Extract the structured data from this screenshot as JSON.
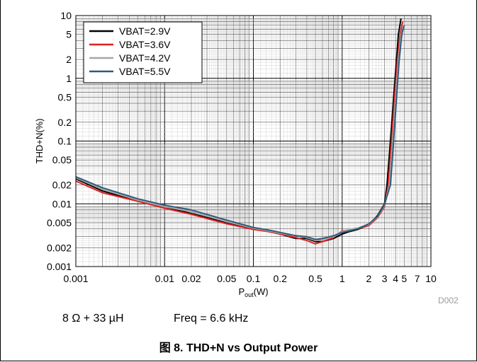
{
  "figure": {
    "caption": "图 8. THD+N vs Output Power",
    "code": "D002",
    "cond_left": "8 Ω + 33 µH",
    "cond_right": "Freq = 6.6 kHz"
  },
  "chart_data": {
    "type": "line",
    "xscale": "log",
    "yscale": "log",
    "xlim": [
      0.001,
      10
    ],
    "ylim": [
      0.001,
      10
    ],
    "ylabel": "THD+N(%)",
    "xlabel_main": "P",
    "xlabel_sub": "out",
    "xlabel_unit": "(W)",
    "grid": true,
    "legend_position": "top-left",
    "x_ticks": [
      {
        "v": 0.001,
        "t": "0.001"
      },
      {
        "v": 0.01,
        "t": "0.01"
      },
      {
        "v": 0.02,
        "t": "0.02"
      },
      {
        "v": 0.05,
        "t": "0.05"
      },
      {
        "v": 0.1,
        "t": "0.1"
      },
      {
        "v": 0.2,
        "t": "0.2"
      },
      {
        "v": 0.5,
        "t": "0.5"
      },
      {
        "v": 1,
        "t": "1"
      },
      {
        "v": 2,
        "t": "2"
      },
      {
        "v": 3,
        "t": "3"
      },
      {
        "v": 4,
        "t": "4"
      },
      {
        "v": 5,
        "t": "5"
      },
      {
        "v": 7,
        "t": "7"
      },
      {
        "v": 10,
        "t": "10"
      }
    ],
    "y_ticks": [
      {
        "v": 0.001,
        "t": "0.001"
      },
      {
        "v": 0.002,
        "t": "0.002"
      },
      {
        "v": 0.005,
        "t": "0.005"
      },
      {
        "v": 0.01,
        "t": "0.01"
      },
      {
        "v": 0.02,
        "t": "0.02"
      },
      {
        "v": 0.05,
        "t": "0.05"
      },
      {
        "v": 0.1,
        "t": "0.1"
      },
      {
        "v": 0.2,
        "t": "0.2"
      },
      {
        "v": 0.5,
        "t": "0.5"
      },
      {
        "v": 1,
        "t": "1"
      },
      {
        "v": 2,
        "t": "2"
      },
      {
        "v": 5,
        "t": "5"
      },
      {
        "v": 10,
        "t": "10"
      }
    ],
    "series": [
      {
        "name": "VBAT=2.9V",
        "color": "#000000",
        "points": [
          [
            0.001,
            0.025
          ],
          [
            0.002,
            0.016
          ],
          [
            0.005,
            0.011
          ],
          [
            0.01,
            0.009
          ],
          [
            0.02,
            0.007
          ],
          [
            0.05,
            0.005
          ],
          [
            0.1,
            0.004
          ],
          [
            0.15,
            0.0036
          ],
          [
            0.2,
            0.0033
          ],
          [
            0.3,
            0.0028
          ],
          [
            0.4,
            0.0028
          ],
          [
            0.5,
            0.0025
          ],
          [
            0.6,
            0.0025
          ],
          [
            0.8,
            0.0028
          ],
          [
            1,
            0.0033
          ],
          [
            1.2,
            0.0036
          ],
          [
            1.5,
            0.0039
          ],
          [
            2,
            0.0046
          ],
          [
            2.5,
            0.0065
          ],
          [
            3,
            0.01
          ],
          [
            3.2,
            0.02
          ],
          [
            3.5,
            0.1
          ],
          [
            3.8,
            0.5
          ],
          [
            4.1,
            2
          ],
          [
            4.3,
            5
          ],
          [
            4.6,
            9
          ]
        ]
      },
      {
        "name": "VBAT=3.6V",
        "color": "#e02020",
        "points": [
          [
            0.001,
            0.023
          ],
          [
            0.002,
            0.015
          ],
          [
            0.005,
            0.011
          ],
          [
            0.01,
            0.0085
          ],
          [
            0.02,
            0.0068
          ],
          [
            0.05,
            0.0048
          ],
          [
            0.1,
            0.0039
          ],
          [
            0.15,
            0.0036
          ],
          [
            0.2,
            0.0033
          ],
          [
            0.3,
            0.0029
          ],
          [
            0.4,
            0.0026
          ],
          [
            0.5,
            0.0023
          ],
          [
            0.6,
            0.0025
          ],
          [
            0.8,
            0.0029
          ],
          [
            1,
            0.0037
          ],
          [
            1.2,
            0.0038
          ],
          [
            1.5,
            0.004
          ],
          [
            2,
            0.0045
          ],
          [
            2.5,
            0.006
          ],
          [
            3,
            0.009
          ],
          [
            3.3,
            0.02
          ],
          [
            3.6,
            0.1
          ],
          [
            3.9,
            0.5
          ],
          [
            4.2,
            2
          ],
          [
            4.5,
            5
          ],
          [
            4.8,
            8
          ]
        ]
      },
      {
        "name": "VBAT=4.2V",
        "color": "#a6a6a6",
        "points": [
          [
            0.001,
            0.026
          ],
          [
            0.002,
            0.017
          ],
          [
            0.005,
            0.0115
          ],
          [
            0.01,
            0.009
          ],
          [
            0.02,
            0.0075
          ],
          [
            0.05,
            0.0052
          ],
          [
            0.1,
            0.0041
          ],
          [
            0.15,
            0.0037
          ],
          [
            0.2,
            0.0034
          ],
          [
            0.3,
            0.0031
          ],
          [
            0.4,
            0.0029
          ],
          [
            0.5,
            0.0026
          ],
          [
            0.6,
            0.0027
          ],
          [
            0.8,
            0.003
          ],
          [
            1,
            0.0036
          ],
          [
            1.2,
            0.0039
          ],
          [
            1.5,
            0.0041
          ],
          [
            2,
            0.0047
          ],
          [
            2.5,
            0.0062
          ],
          [
            3,
            0.0095
          ],
          [
            3.4,
            0.02
          ],
          [
            3.7,
            0.1
          ],
          [
            4.0,
            0.5
          ],
          [
            4.3,
            2
          ],
          [
            4.6,
            5
          ],
          [
            5.0,
            7
          ]
        ]
      },
      {
        "name": "VBAT=5.5V",
        "color": "#2f5a7a",
        "points": [
          [
            0.001,
            0.027
          ],
          [
            0.002,
            0.018
          ],
          [
            0.005,
            0.012
          ],
          [
            0.01,
            0.0095
          ],
          [
            0.02,
            0.008
          ],
          [
            0.05,
            0.0055
          ],
          [
            0.1,
            0.0042
          ],
          [
            0.15,
            0.0038
          ],
          [
            0.2,
            0.0035
          ],
          [
            0.3,
            0.0031
          ],
          [
            0.4,
            0.003
          ],
          [
            0.5,
            0.0027
          ],
          [
            0.6,
            0.0028
          ],
          [
            0.8,
            0.0031
          ],
          [
            1,
            0.0035
          ],
          [
            1.2,
            0.0037
          ],
          [
            1.5,
            0.004
          ],
          [
            2,
            0.0048
          ],
          [
            2.5,
            0.0063
          ],
          [
            3,
            0.0098
          ],
          [
            3.5,
            0.02
          ],
          [
            3.8,
            0.1
          ],
          [
            4.1,
            0.5
          ],
          [
            4.4,
            2
          ],
          [
            4.7,
            5
          ],
          [
            5.0,
            7
          ]
        ]
      }
    ]
  }
}
